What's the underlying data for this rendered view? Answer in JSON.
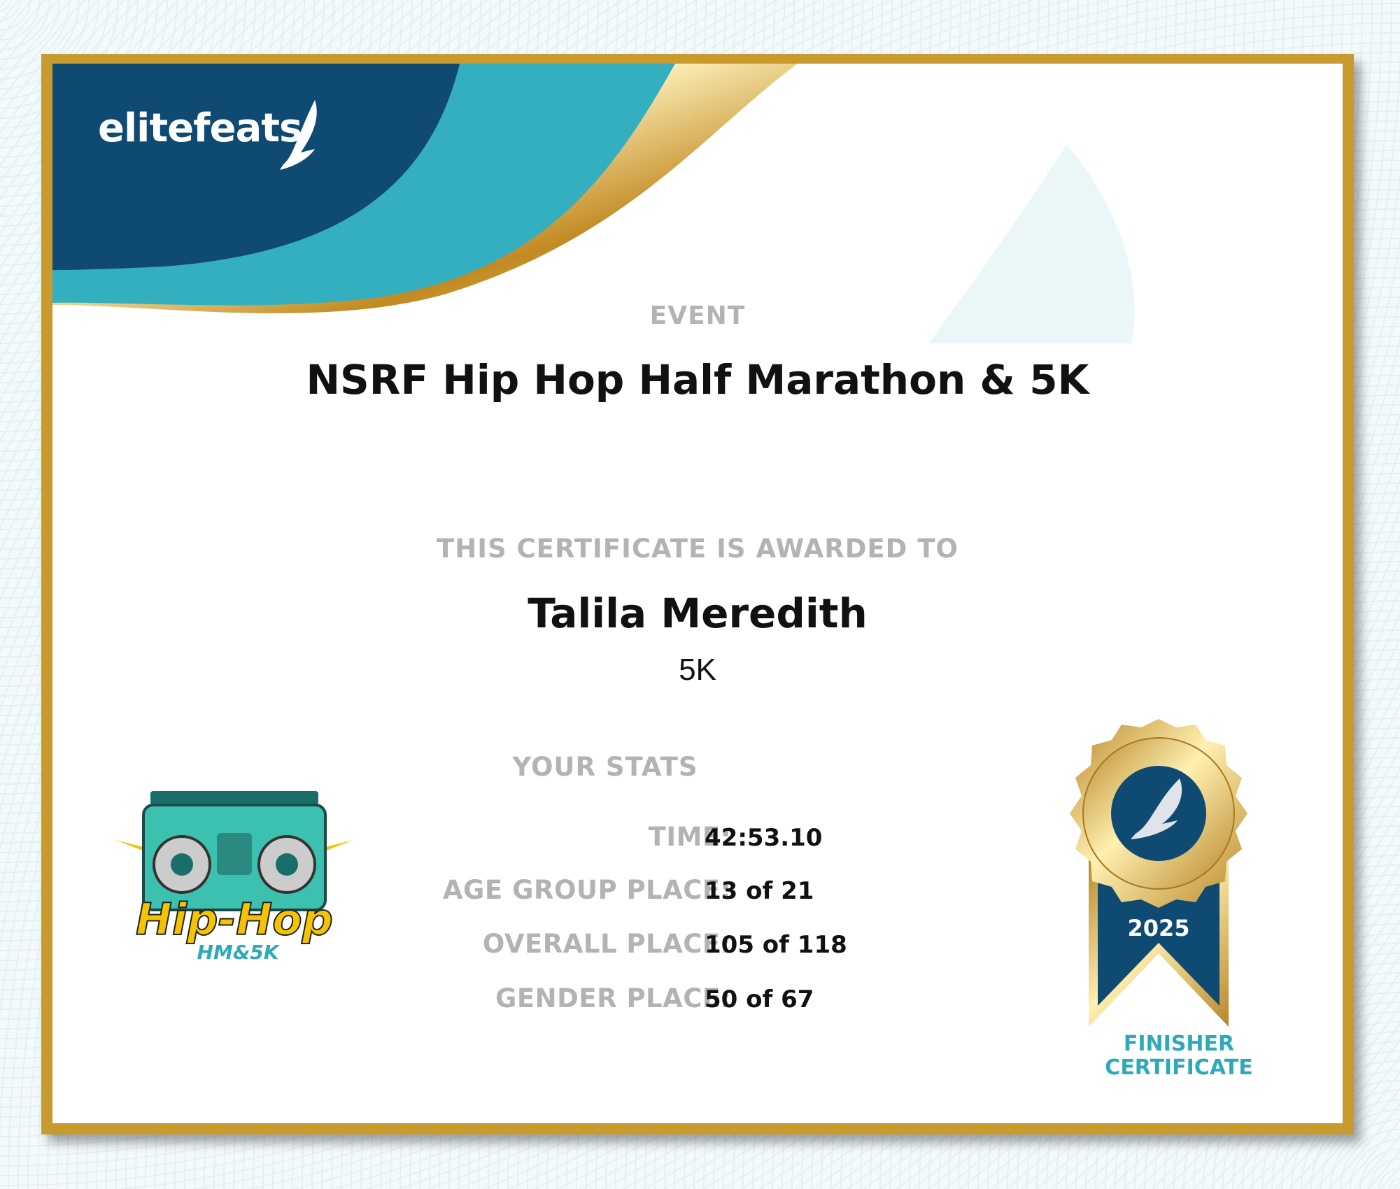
{
  "brand": {
    "logo_text": "elitefeats",
    "colors": {
      "navy": "#0f4a73",
      "teal": "#33afbf",
      "gold": "#c99a2e"
    }
  },
  "event": {
    "label": "EVENT",
    "name": "NSRF Hip Hop Half Marathon & 5K"
  },
  "award": {
    "label": "THIS CERTIFICATE IS AWARDED TO",
    "name": "Talila Meredith",
    "race": "5K"
  },
  "stats": {
    "label": "YOUR STATS",
    "rows": [
      {
        "key": "TIME:",
        "value": "42:53.10"
      },
      {
        "key": "AGE GROUP PLACE:",
        "value": "13 of 21"
      },
      {
        "key": "OVERALL PLACE:",
        "value": "105 of 118"
      },
      {
        "key": "GENDER PLACE:",
        "value": "50 of 67"
      }
    ]
  },
  "event_logo": {
    "text": "Hip-Hop",
    "subtext": "HM&5K"
  },
  "medal": {
    "year": "2025",
    "line1": "FINISHER",
    "line2": "CERTIFICATE"
  }
}
